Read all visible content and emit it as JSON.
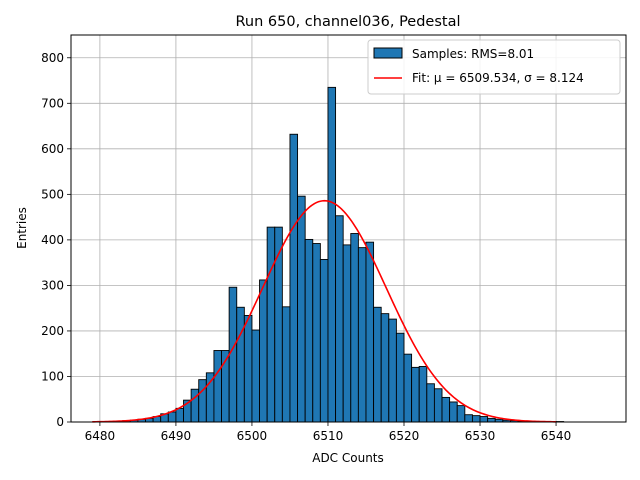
{
  "chart_data": {
    "type": "bar",
    "title": "Run 650, channel036, Pedestal",
    "xlabel": "ADC Counts",
    "ylabel": "Entries",
    "xlim": [
      6476.2,
      6549.2
    ],
    "ylim": [
      0,
      850
    ],
    "x_ticks": [
      6480,
      6490,
      6500,
      6510,
      6520,
      6530,
      6540
    ],
    "y_ticks": [
      0,
      100,
      200,
      300,
      400,
      500,
      600,
      700,
      800
    ],
    "grid": true,
    "legend_position": "top-right",
    "bins": {
      "start": 6480,
      "width": 1,
      "values": [
        1,
        1,
        2,
        3,
        4,
        6,
        8,
        12,
        18,
        22,
        30,
        48,
        72,
        93,
        108,
        157,
        157,
        296,
        252,
        234,
        202,
        312,
        428,
        428,
        253,
        632,
        496,
        401,
        392,
        357,
        735,
        453,
        389,
        414,
        383,
        395,
        252,
        238,
        226,
        195,
        149,
        120,
        122,
        84,
        73,
        54,
        44,
        36,
        16,
        14,
        12,
        8,
        6,
        4,
        3,
        2,
        1,
        1,
        1,
        1,
        1
      ]
    },
    "series": [
      {
        "name": "Samples: RMS=8.01",
        "kind": "histogram",
        "color": "#1f77b4"
      },
      {
        "name": "Fit: μ = 6509.534, σ = 8.124",
        "kind": "gaussian",
        "color": "#ff0000",
        "mu": 6509.534,
        "sigma": 8.124,
        "amplitude": 486,
        "x_range": [
          6479,
          6540
        ]
      }
    ]
  }
}
